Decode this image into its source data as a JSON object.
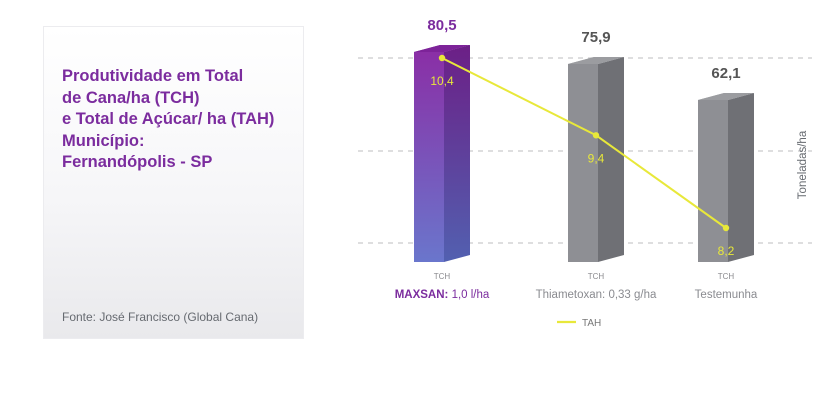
{
  "card": {
    "title_lines": [
      "Produtividade em Total",
      "de Cana/ha (TCH)",
      "e Total de Açúcar/ ha (TAH)",
      "Município:",
      "Fernandópolis - SP"
    ],
    "source": "Fonte: José Francisco (Global Cana)"
  },
  "chart_data": {
    "type": "bar",
    "title": "Produtividade em Total de Cana/ha (TCH) e Total de Açúcar/ ha (TAH)",
    "ylabel": "Toneladas/ha",
    "categories": [
      {
        "name_bold": "MAXSAN:",
        "name_rest": " 1,0 l/ha",
        "sublabel": "TCH"
      },
      {
        "name_bold": "",
        "name_rest": "Thiametoxan: 0,33 g/ha",
        "sublabel": "TCH"
      },
      {
        "name_bold": "",
        "name_rest": "Testemunha",
        "sublabel": "TCH"
      }
    ],
    "series": [
      {
        "name": "TCH",
        "type": "bar",
        "values": [
          80.5,
          75.9,
          62.1
        ],
        "labels": [
          "80,5",
          "75,9",
          "62,1"
        ]
      },
      {
        "name": "TAH",
        "type": "line",
        "values": [
          10.4,
          9.4,
          8.2
        ],
        "labels": [
          "10,4",
          "9,4",
          "8,2"
        ]
      }
    ],
    "legend": {
      "label": "TAH",
      "position": "bottom"
    },
    "colors": {
      "highlight_top": "#8a2fa6",
      "highlight_bottom": "#6a76cc",
      "gray_front": "#8e8f94",
      "gray_side": "#6f7075",
      "gray_top": "#a5a6aa",
      "line": "#e8e83a",
      "value_label": "#555555",
      "highlight_value_label": "#7b2c9e",
      "grid": "#c9c9cc"
    }
  }
}
